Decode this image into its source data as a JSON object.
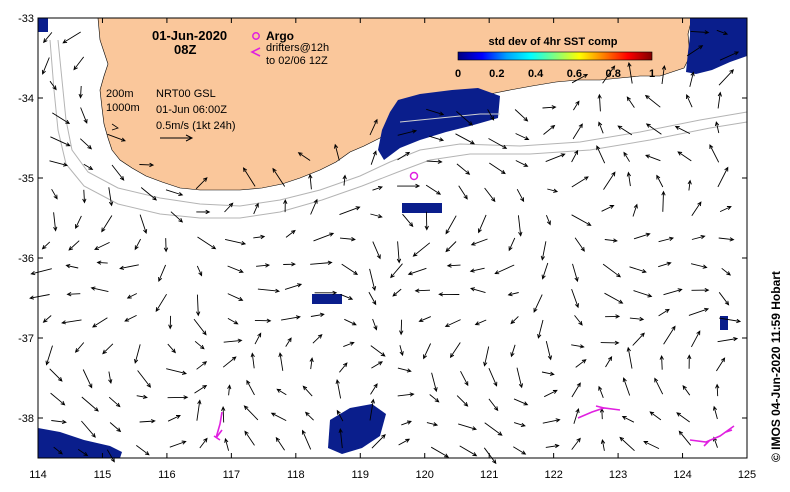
{
  "header": {
    "date": "01-Jun-2020",
    "time": "08Z"
  },
  "legend": {
    "argo_symbol_label": "Argo",
    "drifters_line1": "drifters@12h",
    "drifters_line2": "to 02/06 12Z",
    "argo_color": "#e020e0",
    "drifter_color": "#e020e0"
  },
  "colorbar": {
    "title": "std dev of 4hr SST comp",
    "ticks": [
      "0",
      "0.2",
      "0.4",
      "0.6",
      "0.8",
      "1"
    ],
    "colormap": [
      "#000080",
      "#0000ff",
      "#00a0ff",
      "#00ffff",
      "#80ff80",
      "#ffff00",
      "#ff8000",
      "#ff0000",
      "#800000"
    ]
  },
  "info": {
    "contour_200": "200m",
    "contour_1000": "1000m",
    "product": "NRT00 GSL",
    "datetime": "01-Jun 06:00Z",
    "scale": "0.5m/s (1kt 24h)"
  },
  "axes": {
    "x_ticks": [
      "114",
      "115",
      "116",
      "117",
      "118",
      "119",
      "120",
      "121",
      "122",
      "123",
      "124",
      "125"
    ],
    "y_ticks": [
      "-33",
      "-34",
      "-35",
      "-36",
      "-37",
      "-38"
    ]
  },
  "credit": "© IMOS 04-Jun-2020 11:59 Hobart",
  "colors": {
    "land": "#fac79b",
    "sst_patch": "#0a1e8c",
    "bathymetry": "#b4b4b4",
    "vector": "#000000"
  },
  "chart_data": {
    "type": "map",
    "xlim": [
      114,
      125
    ],
    "ylim": [
      -38.5,
      -33
    ],
    "argo_floats": [
      {
        "lon": 119.85,
        "lat": -34.95
      }
    ]
  }
}
